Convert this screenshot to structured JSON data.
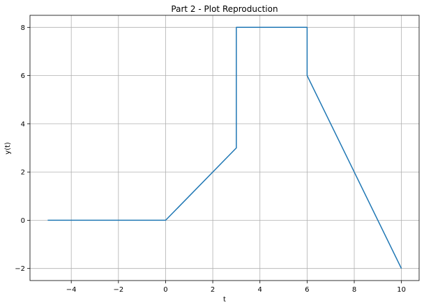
{
  "chart_data": {
    "type": "line",
    "title": "Part 2 - Plot Reproduction",
    "xlabel": "t",
    "ylabel": "y(t)",
    "xlim": [
      -5.75,
      10.75
    ],
    "ylim": [
      -2.5,
      8.5
    ],
    "xticks": [
      -4,
      -2,
      0,
      2,
      4,
      6,
      8,
      10
    ],
    "xtick_labels": [
      "−4",
      "−2",
      "0",
      "2",
      "4",
      "6",
      "8",
      "10"
    ],
    "yticks": [
      -2,
      0,
      2,
      4,
      6,
      8
    ],
    "ytick_labels": [
      "−2",
      "0",
      "2",
      "4",
      "6",
      "8"
    ],
    "grid": true,
    "series": [
      {
        "color": "#1f77b4",
        "x": [
          -5,
          0,
          3,
          3,
          6,
          6,
          10
        ],
        "y": [
          0,
          0,
          3,
          8,
          8,
          6,
          -2
        ]
      }
    ]
  }
}
